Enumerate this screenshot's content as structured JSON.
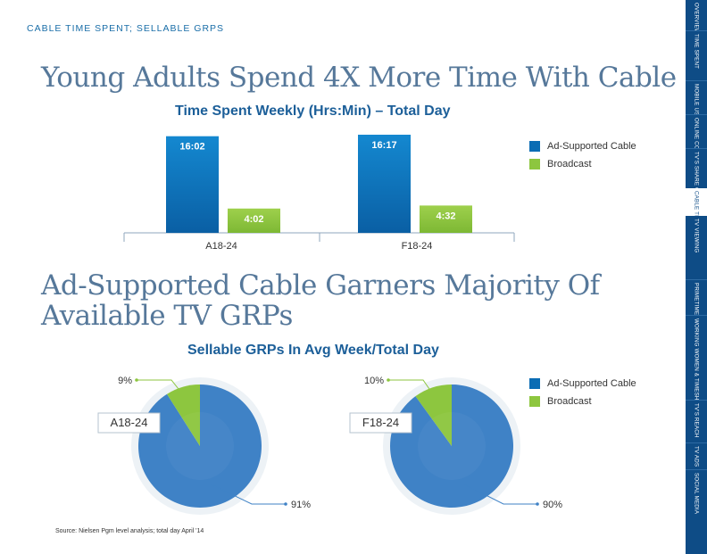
{
  "header": {
    "section_label": "CABLE TIME SPENT; SELLABLE GRPS",
    "headline_1": "Young Adults Spend 4X More Time With Cable",
    "headline_2_line1": "Ad-Supported Cable Garners Majority Of",
    "headline_2_line2": "Available TV GRPs"
  },
  "colors": {
    "cable": "#0a6cb4",
    "cable_pie": "#3f82c6",
    "broadcast": "#8dc63f",
    "title_blue": "#1c5f99"
  },
  "legend": {
    "cable": "Ad-Supported Cable",
    "broadcast": "Broadcast"
  },
  "chart_data": [
    {
      "type": "bar",
      "title": "Time Spent Weekly (Hrs:Min) – Total Day",
      "categories": [
        "A18-24",
        "F18-24"
      ],
      "series": [
        {
          "name": "Ad-Supported Cable",
          "values": [
            16.033,
            16.283
          ],
          "labels": [
            "16:02",
            "16:17"
          ]
        },
        {
          "name": "Broadcast",
          "values": [
            4.033,
            4.533
          ],
          "labels": [
            "4:02",
            "4:32"
          ]
        }
      ],
      "legend_position": "right",
      "grid": false
    },
    {
      "type": "pie",
      "title": "Sellable GRPs In Avg Week/Total Day",
      "pies": [
        {
          "name": "A18-24",
          "slices": [
            {
              "label": "Ad-Supported Cable",
              "value": 91,
              "text": "91%"
            },
            {
              "label": "Broadcast",
              "value": 9,
              "text": "9%"
            }
          ]
        },
        {
          "name": "F18-24",
          "slices": [
            {
              "label": "Ad-Supported Cable",
              "value": 90,
              "text": "90%"
            },
            {
              "label": "Broadcast",
              "value": 10,
              "text": "10%"
            }
          ]
        }
      ],
      "legend_position": "right"
    }
  ],
  "source": "Source: Nielsen Pgm level analysis; total day April '14",
  "sidenav": [
    {
      "label": "OVERVIEW",
      "active": false
    },
    {
      "label": "TIME SPENT",
      "active": false
    },
    {
      "label": "MOBILE USAGE",
      "active": false
    },
    {
      "label": "ONLINE CONTENT",
      "active": false
    },
    {
      "label": "TV'S SHARE OF VIDEO",
      "active": false
    },
    {
      "label": "CABLE TIME SPENT",
      "active": true
    },
    {
      "label": "TV VIEWING",
      "active": false
    },
    {
      "label": "PRIMETIME TV VIEWING",
      "active": false
    },
    {
      "label": "WORKING WOMEN & TIMESHIFTING",
      "active": false
    },
    {
      "label": "TV'S REACH",
      "active": false
    },
    {
      "label": "TV ADS",
      "active": false
    },
    {
      "label": "SOCIAL MEDIA",
      "active": false
    }
  ]
}
